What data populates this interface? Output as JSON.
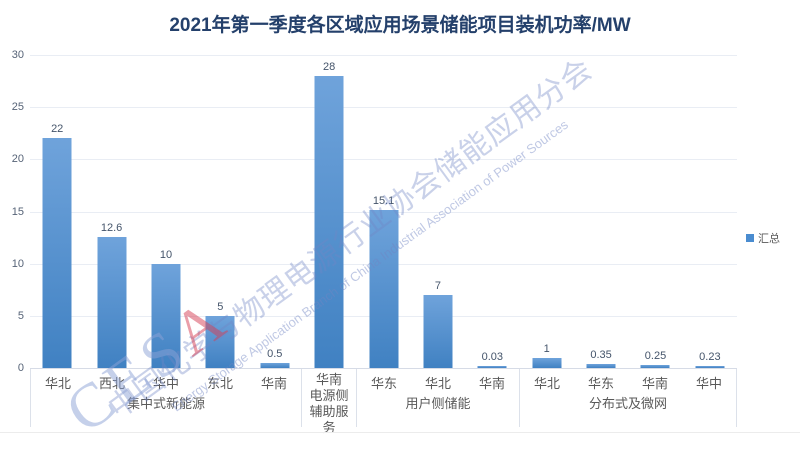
{
  "title": "2021年第一季度各区域应用场景储能项目装机功率/MW",
  "legend": {
    "label": "汇总",
    "color": "#4A8CD0"
  },
  "watermark": {
    "logo_prefix": "CES",
    "logo_suffix": "A",
    "line_cn": "中国化学与物理电源行业协会储能应用分会",
    "line_en": "Energy Storage Application Branch of China Industrial Association of Power Sources"
  },
  "colors": {
    "bar_top": "#6FA3DB",
    "bar_bottom": "#4081C2",
    "title": "#24406B",
    "gridline": "#E9EDF4",
    "axis_line": "#D6DBE6",
    "tick_label": "#566377",
    "data_label": "#44546A"
  },
  "chart_data": {
    "type": "bar",
    "title": "2021年第一季度各区域应用场景储能项目装机功率/MW",
    "xlabel": "",
    "ylabel": "",
    "ylim": [
      0,
      30
    ],
    "yticks": [
      0,
      5,
      10,
      15,
      20,
      25,
      30
    ],
    "grid": true,
    "legend_entries": [
      "汇总"
    ],
    "legend_position": "right",
    "series_name": "汇总",
    "groups": [
      {
        "label": "集中式新能源",
        "categories": [
          "华北",
          "西北",
          "华中",
          "东北",
          "华南"
        ],
        "values": [
          22,
          12.6,
          10,
          5,
          0.5
        ]
      },
      {
        "label": "电源侧辅助服务",
        "categories": [
          "华南"
        ],
        "values": [
          28
        ]
      },
      {
        "label": "用户侧储能",
        "categories": [
          "华东",
          "华北",
          "华南"
        ],
        "values": [
          15.1,
          7,
          0.03
        ]
      },
      {
        "label": "分布式及微网",
        "categories": [
          "华北",
          "华东",
          "华南",
          "华中"
        ],
        "values": [
          1,
          0.35,
          0.25,
          0.23
        ]
      }
    ]
  }
}
